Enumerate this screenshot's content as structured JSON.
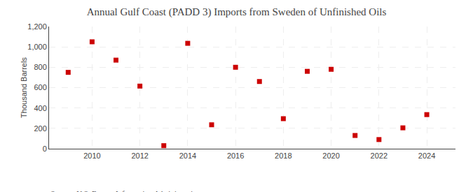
{
  "chart_data": {
    "type": "scatter",
    "title": "Annual Gulf Coast (PADD 3) Imports from Sweden of Unfinished Oils",
    "ylabel": "Thousand Barrels",
    "annotations": [
      "Source: U.S. Energy Information Administration"
    ],
    "x": [
      2009,
      2010,
      2011,
      2012,
      2013,
      2014,
      2015,
      2016,
      2017,
      2018,
      2019,
      2020,
      2021,
      2022,
      2023,
      2024
    ],
    "values": [
      750,
      1050,
      870,
      615,
      30,
      1035,
      235,
      800,
      660,
      295,
      760,
      780,
      130,
      90,
      205,
      335
    ],
    "color": "#cc0000",
    "marker": "square",
    "xlim": [
      2008.2,
      2025.2
    ],
    "xticks": [
      2010,
      2012,
      2014,
      2016,
      2018,
      2020,
      2022,
      2024
    ],
    "ylim": [
      0,
      1200
    ],
    "yticks": [
      0,
      200,
      400,
      600,
      800,
      {
        "value": 1000,
        "label": "1,000"
      },
      {
        "value": 1200,
        "label": "1,200"
      }
    ],
    "grid": true
  }
}
